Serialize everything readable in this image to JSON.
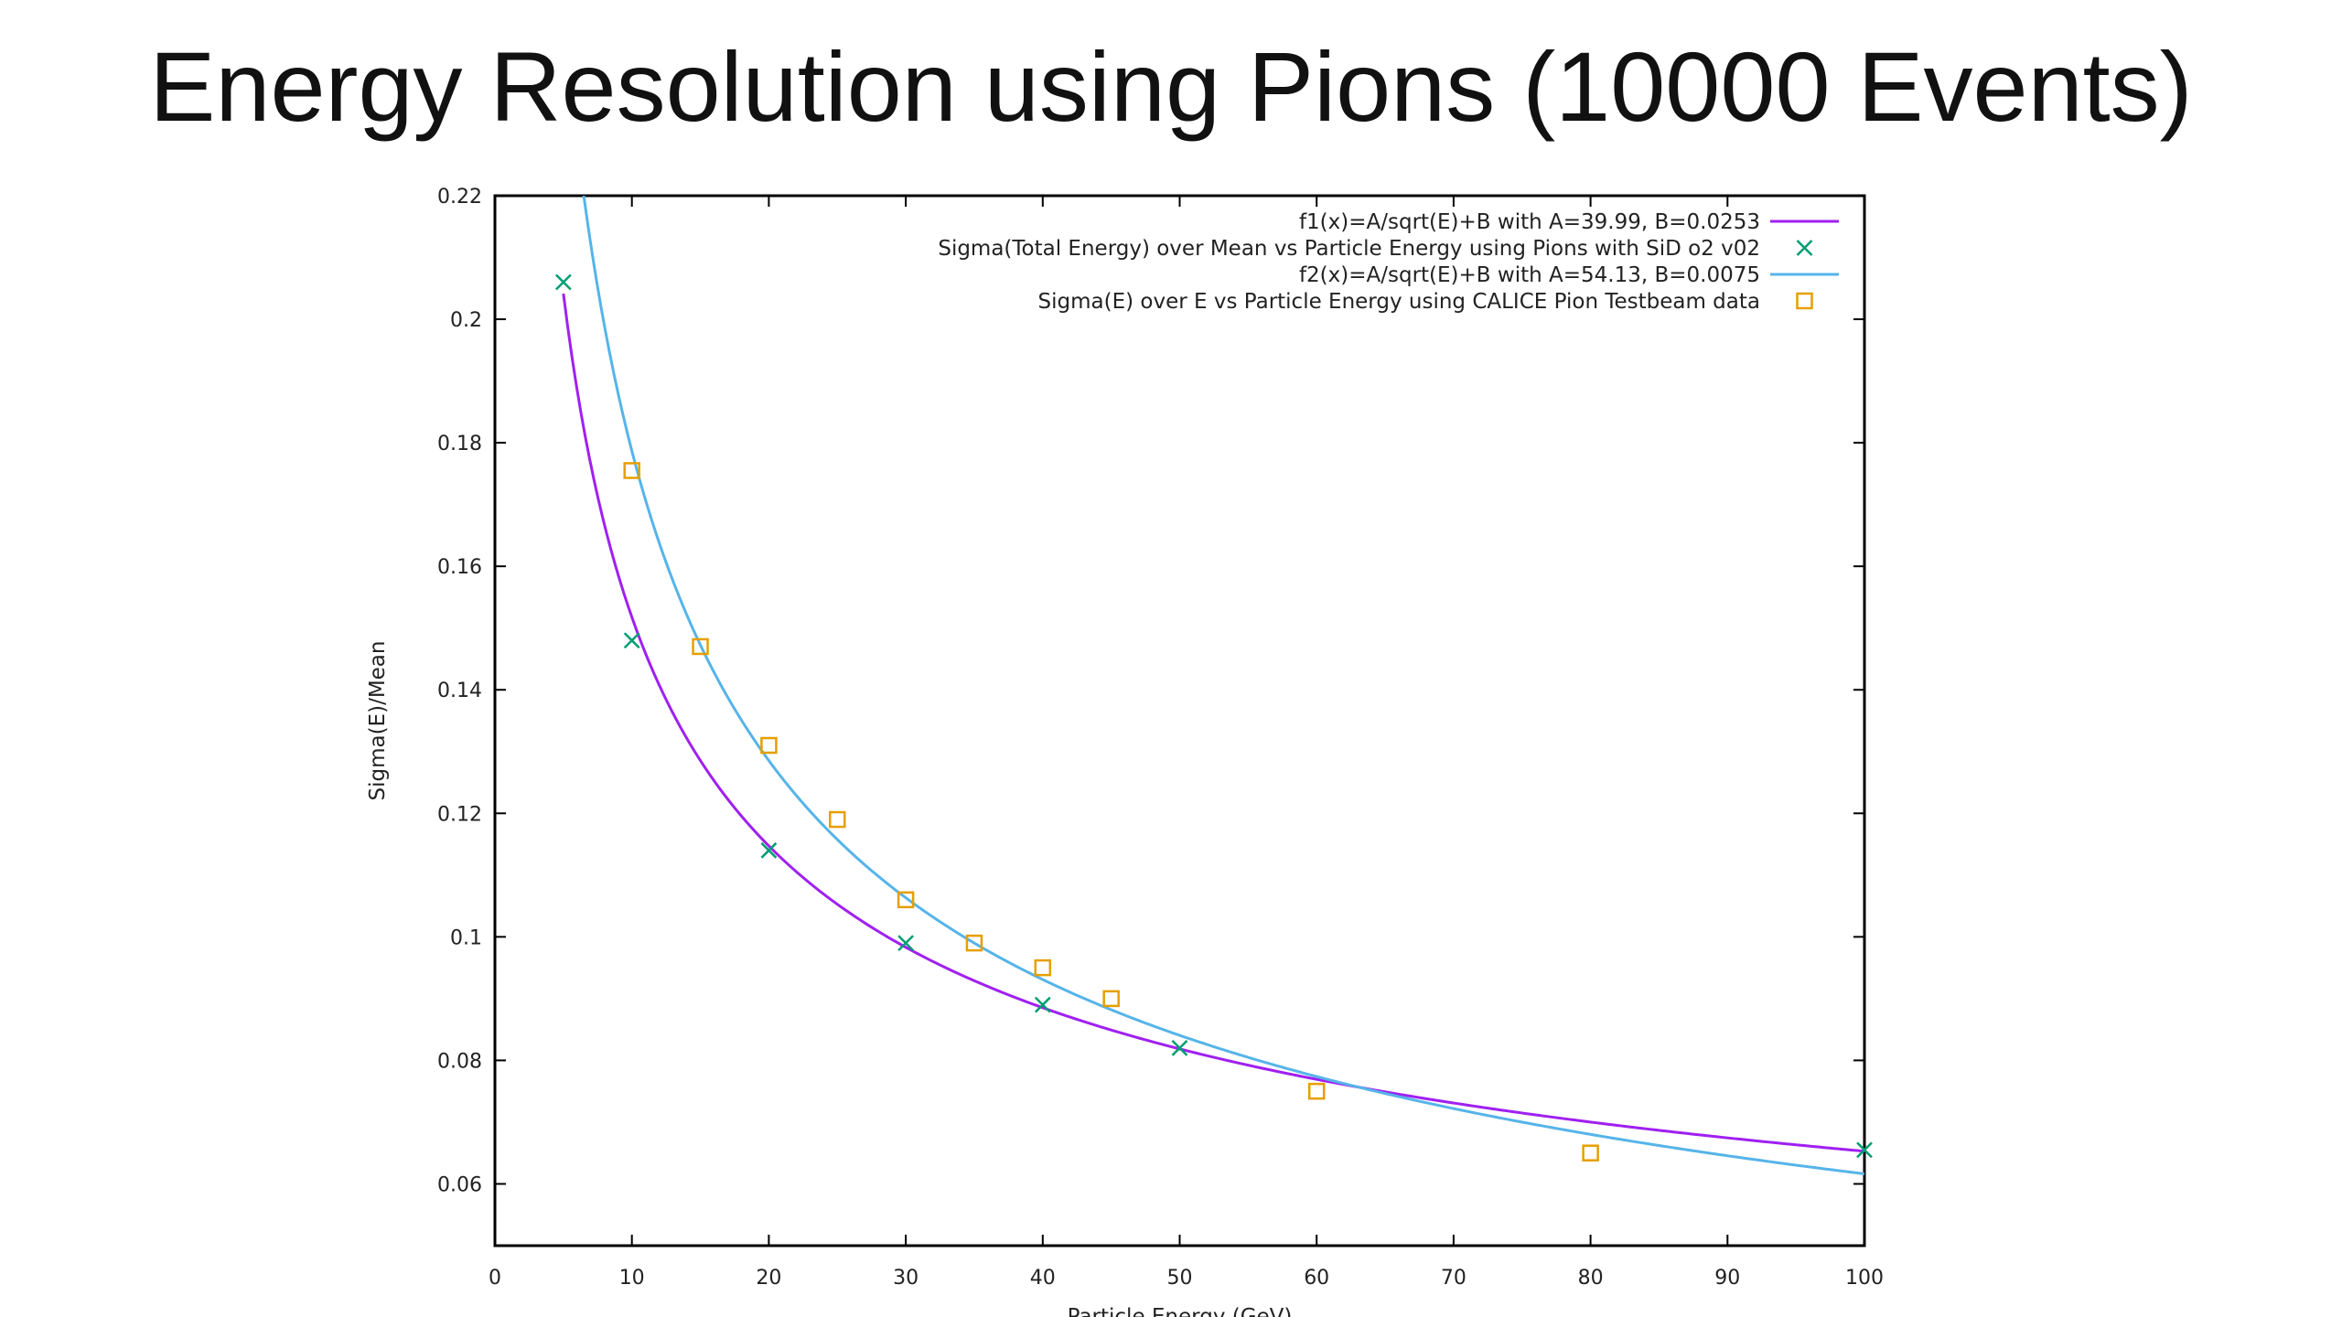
{
  "slide": {
    "title": "Energy Resolution using Pions (10000 Events)"
  },
  "chart_data": {
    "type": "scatter",
    "xlabel": "Particle Energy (GeV)",
    "ylabel": "Sigma(E)/Mean",
    "xlim": [
      0,
      100
    ],
    "ylim": [
      0.05,
      0.22
    ],
    "xticks": [
      0,
      10,
      20,
      30,
      40,
      50,
      60,
      70,
      80,
      90,
      100
    ],
    "yticks": [
      0.06,
      0.08,
      0.1,
      0.12,
      0.14,
      0.16,
      0.18,
      0.2,
      0.22
    ],
    "ytick_labels": [
      "0.06",
      "0.08",
      "0.1",
      "0.12",
      "0.14",
      "0.16",
      "0.18",
      "0.2",
      "0.22"
    ],
    "grid": false,
    "legend_position": "top-right",
    "series": [
      {
        "name": "f1(x)=A/sqrt(E)+B with A=39.99, B=0.0253",
        "kind": "line",
        "color": "#a020f0",
        "formula": {
          "A": 39.99,
          "B": 0.0253
        },
        "x_range": [
          5,
          100
        ]
      },
      {
        "name": "Sigma(Total Energy) over Mean vs Particle Energy using Pions with SiD o2 v02",
        "kind": "points",
        "marker": "cross",
        "color": "#009e73",
        "x": [
          5,
          10,
          20,
          30,
          40,
          50,
          100
        ],
        "y": [
          0.206,
          0.148,
          0.114,
          0.099,
          0.089,
          0.082,
          0.0655
        ]
      },
      {
        "name": "f2(x)=A/sqrt(E)+B with A=54.13, B=0.0075",
        "kind": "line",
        "color": "#56b4e9",
        "formula": {
          "A": 54.13,
          "B": 0.0075
        },
        "x_range": [
          6.2,
          100
        ]
      },
      {
        "name": "Sigma(E) over E vs Particle Energy using CALICE Pion Testbeam data",
        "kind": "points",
        "marker": "square",
        "color": "#e69f00",
        "x": [
          10,
          15,
          20,
          25,
          30,
          35,
          40,
          45,
          60,
          80
        ],
        "y": [
          0.1755,
          0.147,
          0.131,
          0.119,
          0.106,
          0.099,
          0.095,
          0.09,
          0.075,
          0.065
        ]
      }
    ]
  }
}
